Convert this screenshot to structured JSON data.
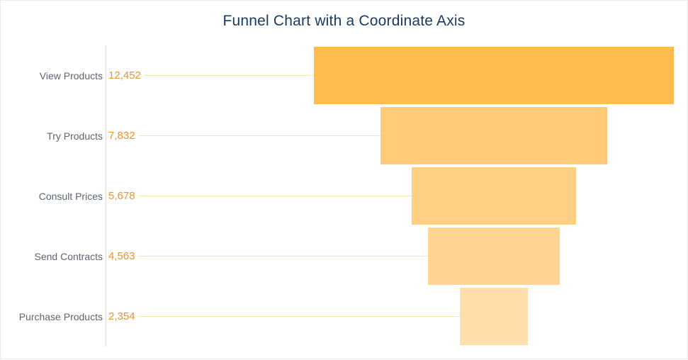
{
  "page": {
    "background": "#ffffff",
    "border_color": "#ebebeb"
  },
  "chart_data": {
    "type": "funnel",
    "title": "Funnel Chart with a Coordinate Axis",
    "orientation": "horizontal-centered-bars",
    "categories": [
      "View Products",
      "Try Products",
      "Consult Prices",
      "Send Contracts",
      "Purchase Products"
    ],
    "values": [
      12452,
      7832,
      5678,
      4563,
      2354
    ],
    "value_labels": [
      "12,452",
      "7,832",
      "5,678",
      "4,563",
      "2,354"
    ],
    "bar_colors": [
      "#FFBD50",
      "#FFCB78",
      "#FFD084",
      "#FFD591",
      "#FFDEAC"
    ],
    "title_color": "#1A3B61",
    "category_label_color": "#5C6570",
    "value_label_color": "#E6952F",
    "connector_line_color": "#FAE3B4",
    "axis_line_color": "#DCDCDC",
    "legend": "none",
    "grid": "off",
    "x_axis_ticks": "none",
    "has_left_coordinate_axis": true
  }
}
